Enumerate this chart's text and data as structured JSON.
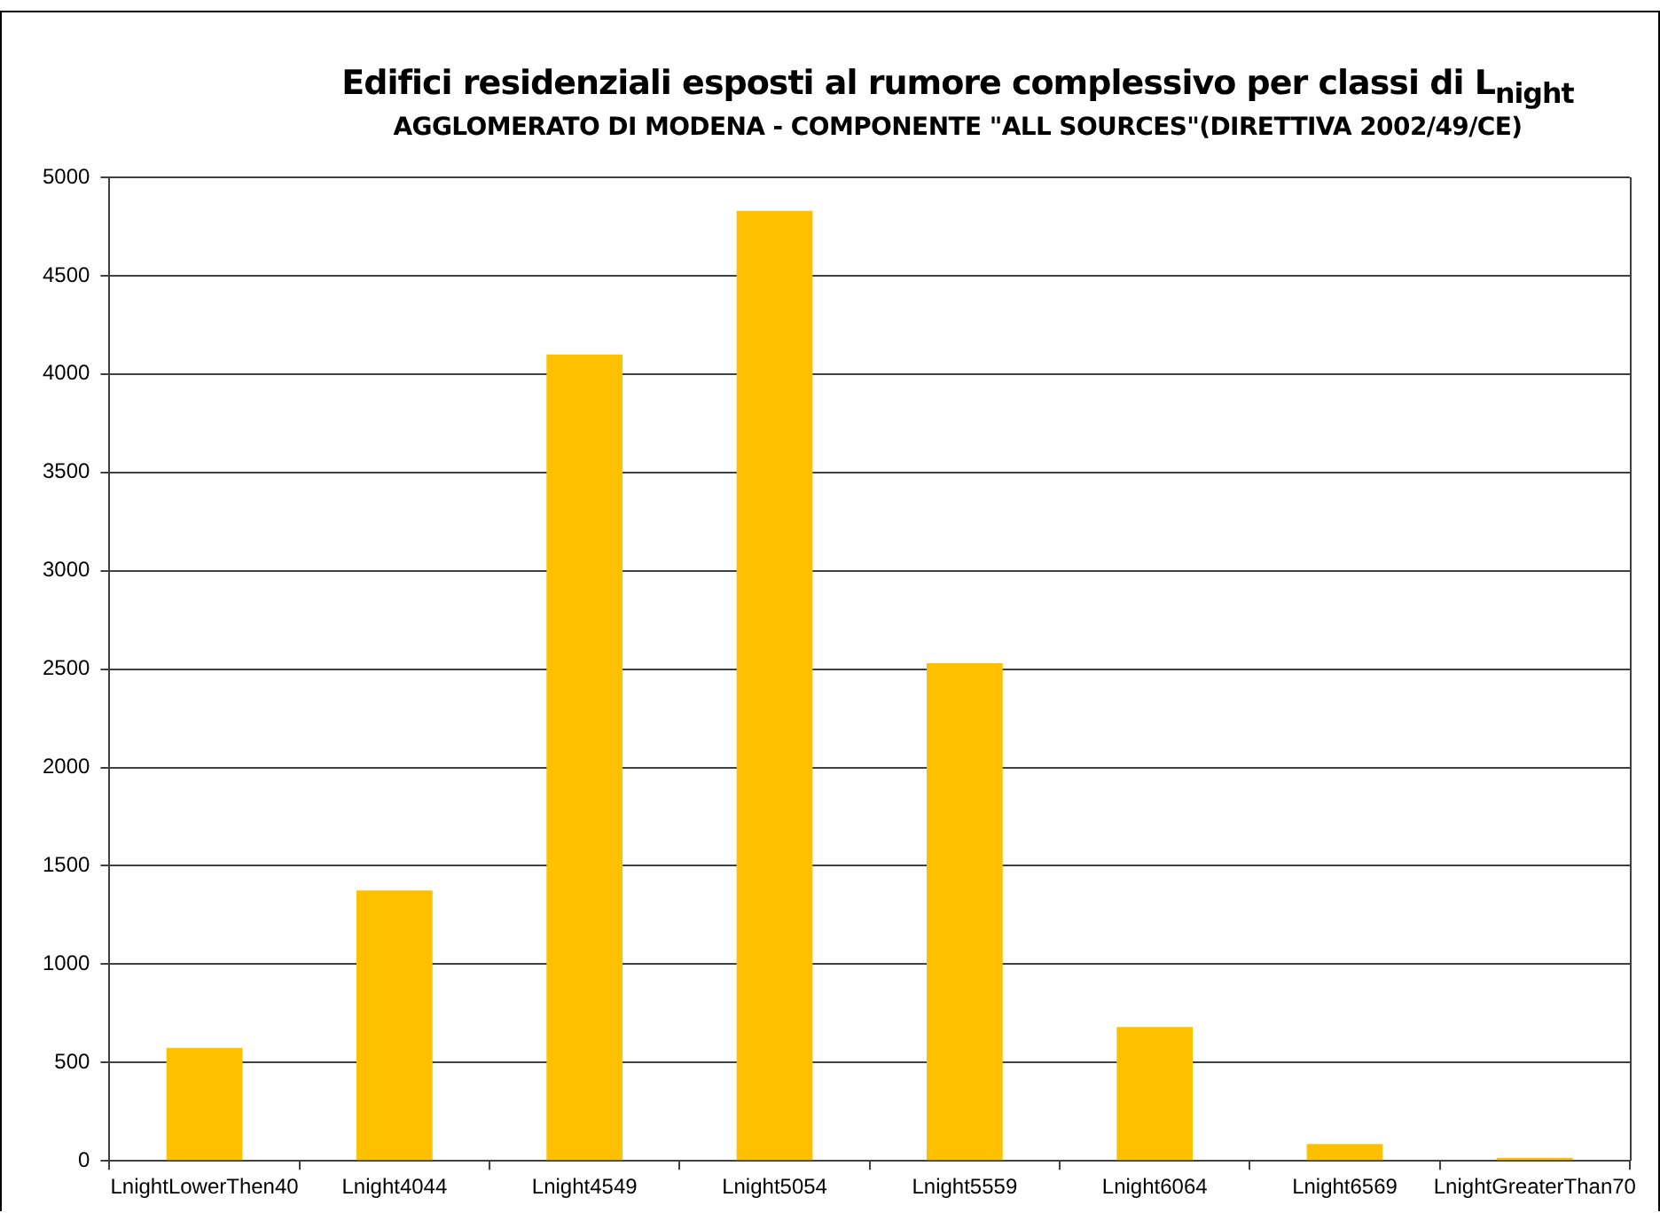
{
  "chart_data": {
    "type": "bar",
    "title": "Edifici residenziali esposti al rumore complessivo per classi di L$_{night}$",
    "subtitle": "AGGLOMERATO DI MODENA - COMPONENTE \"ALL SOURCES\"(DIRETTIVA 2002/49/CE)",
    "categories": [
      "LnightLowerThen40",
      "Lnight4044",
      "Lnight4549",
      "Lnight5054",
      "Lnight5559",
      "Lnight6064",
      "Lnight6569",
      "LnightGreaterThan70"
    ],
    "values": [
      575,
      1375,
      4100,
      4830,
      2530,
      680,
      85,
      15
    ],
    "color": "#ffc000",
    "ylim": [
      0,
      5000
    ],
    "yticks": [
      0,
      500,
      1000,
      1500,
      2000,
      2500,
      3000,
      3500,
      4000,
      4500,
      5000
    ],
    "grid": "y",
    "legend": false
  }
}
